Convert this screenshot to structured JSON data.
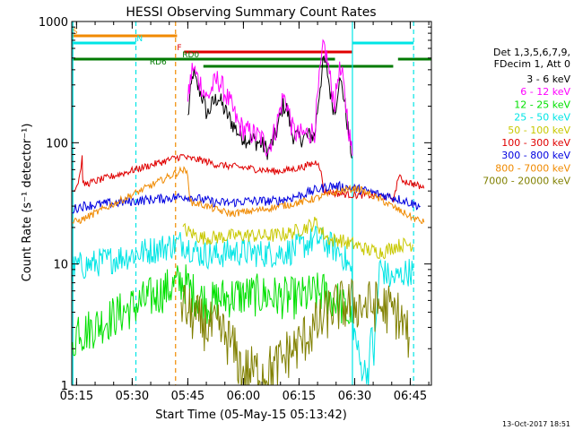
{
  "chart_data": {
    "type": "line",
    "title": "HESSI Observing Summary Count Rates",
    "xlabel": "Start Time (05-May-15 05:13:42)",
    "ylabel": "Count Rate (s⁻¹ detector⁻¹)",
    "x_unit": "minutes after 05:13:42 UT",
    "xlim": [
      0,
      97
    ],
    "ylim": [
      1,
      1000
    ],
    "y_scale": "log",
    "x_ticks": [
      {
        "label": "05:15",
        "t": 1.3
      },
      {
        "label": "05:30",
        "t": 16.3
      },
      {
        "label": "05:45",
        "t": 31.3
      },
      {
        "label": "06:00",
        "t": 46.3
      },
      {
        "label": "06:15",
        "t": 61.3
      },
      {
        "label": "06:30",
        "t": 76.3
      },
      {
        "label": "06:45",
        "t": 91.3
      }
    ],
    "y_ticks": [
      {
        "label": "1",
        "v": 1
      },
      {
        "label": "10",
        "v": 10
      },
      {
        "label": "100",
        "v": 100
      },
      {
        "label": "1000",
        "v": 1000
      }
    ],
    "legend_header": [
      "Det 1,3,5,6,7,9,",
      "FDecim 1, Att 0"
    ],
    "legend_position": "right",
    "timestamp": "13-Oct-2017 18:51",
    "grid": false,
    "vlines": [
      {
        "t": 0.3,
        "color": "#00e5e5",
        "style": "solid"
      },
      {
        "t": 17.3,
        "color": "#00e5e5",
        "style": "dashed"
      },
      {
        "t": 28.0,
        "color": "#f08a00",
        "style": "dashed"
      },
      {
        "t": 75.7,
        "color": "#00e5e5",
        "style": "solid"
      },
      {
        "t": 92.2,
        "color": "#00e5e5",
        "style": "dashed"
      }
    ],
    "flag_bars": [
      {
        "row": 1,
        "t0": 0,
        "t1": 28.4,
        "color": "#f08a00",
        "label": "S",
        "label_at": 0.2
      },
      {
        "row": 2,
        "t0": 0,
        "t1": 17.3,
        "color": "#00e5e5",
        "label": "N",
        "label_at": 17.5
      },
      {
        "row": 2,
        "t0": 75.8,
        "t1": 92.2,
        "color": "#00e5e5",
        "label": "",
        "label_at": 0
      },
      {
        "row": 3,
        "t0": 30.3,
        "t1": 75.8,
        "color": "#e00000",
        "label": "F",
        "label_at": 28.4
      },
      {
        "row": 4,
        "t0": 0,
        "t1": 71.0,
        "color": "#007a00",
        "label": "RD0",
        "label_at": 29.8
      },
      {
        "row": 4,
        "t0": 88.0,
        "t1": 97,
        "color": "#007a00",
        "label": "",
        "label_at": 0
      },
      {
        "row": 5,
        "t0": 35.5,
        "t1": 72.0,
        "color": "#007a00",
        "label": "RD6",
        "label_at": 21.0
      },
      {
        "row": 5,
        "t0": 72.3,
        "t1": 86.7,
        "color": "#007a00",
        "label": "",
        "label_at": 0
      }
    ],
    "series": [
      {
        "name": "3 - 6 keV",
        "color": "#000000",
        "noise": 0.08,
        "points": [
          [
            31.3,
            160
          ],
          [
            32,
            250
          ],
          [
            32.7,
            380
          ],
          [
            33.5,
            310
          ],
          [
            35,
            250
          ],
          [
            36.5,
            170
          ],
          [
            38,
            210
          ],
          [
            39.5,
            240
          ],
          [
            41,
            190
          ],
          [
            43,
            150
          ],
          [
            45,
            120
          ],
          [
            47,
            108
          ],
          [
            49,
            105
          ],
          [
            51,
            98
          ],
          [
            53,
            85
          ],
          [
            55,
            115
          ],
          [
            57,
            205
          ],
          [
            58,
            190
          ],
          [
            59.5,
            118
          ],
          [
            61,
            108
          ],
          [
            63,
            112
          ],
          [
            65.5,
            115
          ],
          [
            67,
            300
          ],
          [
            68,
            480
          ],
          [
            69,
            380
          ],
          [
            70,
            230
          ],
          [
            71,
            180
          ],
          [
            72,
            320
          ],
          [
            73,
            290
          ],
          [
            74,
            170
          ],
          [
            75,
            100
          ],
          [
            75.7,
            75
          ]
        ]
      },
      {
        "name": "6 - 12 keV",
        "color": "#ff00ff",
        "noise": 0.1,
        "points": [
          [
            31.3,
            210
          ],
          [
            32,
            330
          ],
          [
            32.7,
            430
          ],
          [
            33.5,
            360
          ],
          [
            35,
            300
          ],
          [
            36.5,
            230
          ],
          [
            38,
            290
          ],
          [
            39.5,
            335
          ],
          [
            41,
            270
          ],
          [
            43,
            200
          ],
          [
            45,
            140
          ],
          [
            47,
            125
          ],
          [
            49,
            118
          ],
          [
            51,
            110
          ],
          [
            53,
            90
          ],
          [
            55,
            130
          ],
          [
            57,
            240
          ],
          [
            58,
            215
          ],
          [
            59.5,
            130
          ],
          [
            61,
            115
          ],
          [
            63,
            118
          ],
          [
            65.5,
            125
          ],
          [
            67,
            380
          ],
          [
            68,
            640
          ],
          [
            69,
            470
          ],
          [
            70,
            290
          ],
          [
            71,
            210
          ],
          [
            72,
            400
          ],
          [
            73,
            340
          ],
          [
            74,
            200
          ],
          [
            75,
            110
          ],
          [
            75.7,
            78
          ]
        ]
      },
      {
        "name": "12 - 25 keV",
        "color": "#00e000",
        "noise": 0.18,
        "points": [
          [
            0.2,
            2.0
          ],
          [
            1.8,
            3.2
          ],
          [
            2.3,
            3.0
          ],
          [
            2.8,
            2.7
          ],
          [
            30,
            7.2
          ],
          [
            31.3,
            6.5
          ],
          [
            33,
            5.6
          ],
          [
            35,
            5.2
          ],
          [
            37,
            4.6
          ],
          [
            40,
            5.2
          ],
          [
            43,
            5.4
          ],
          [
            46,
            5.5
          ],
          [
            50,
            5.5
          ],
          [
            53,
            5.5
          ],
          [
            56,
            5.3
          ],
          [
            59,
            5.2
          ],
          [
            62,
            5.3
          ],
          [
            65,
            5.6
          ],
          [
            68,
            5.8
          ],
          [
            72,
            4.8
          ],
          [
            74,
            4.0
          ],
          [
            75.5,
            3.3
          ]
        ]
      },
      {
        "name": "25 - 50 keV",
        "color": "#00e5e5",
        "noise": 0.12,
        "points": [
          [
            0.2,
            9
          ],
          [
            2,
            9.8
          ],
          [
            2.5,
            9.5
          ],
          [
            30,
            15
          ],
          [
            31.3,
            14
          ],
          [
            35,
            12
          ],
          [
            39,
            11.8
          ],
          [
            43,
            12.5
          ],
          [
            47,
            12.5
          ],
          [
            51,
            12.2
          ],
          [
            55,
            12.2
          ],
          [
            59,
            12.8
          ],
          [
            63,
            14.5
          ],
          [
            66,
            16.2
          ],
          [
            70,
            14
          ],
          [
            73,
            12
          ],
          [
            75.5,
            8.5
          ],
          [
            76,
            3
          ],
          [
            78,
            1.4
          ],
          [
            80,
            1.3
          ],
          [
            81,
            3
          ],
          [
            81.5,
            1.6
          ],
          [
            83,
            9.5
          ],
          [
            86,
            7.5
          ],
          [
            88,
            7.8
          ],
          [
            90,
            8.5
          ],
          [
            92,
            8.8
          ]
        ]
      },
      {
        "name": "50 - 100 keV",
        "color": "#c8c800",
        "noise": 0.06,
        "points": [
          [
            30,
            19.5
          ],
          [
            31.3,
            18.5
          ],
          [
            33,
            17.5
          ],
          [
            35,
            16.5
          ],
          [
            38,
            16.5
          ],
          [
            43,
            17
          ],
          [
            47,
            17.3
          ],
          [
            51,
            17
          ],
          [
            55,
            17.2
          ],
          [
            59,
            18
          ],
          [
            63,
            20
          ],
          [
            66,
            22
          ],
          [
            68,
            17.5
          ],
          [
            70,
            15.5
          ],
          [
            72,
            16
          ],
          [
            74,
            15
          ],
          [
            76,
            14.5
          ],
          [
            80,
            13
          ],
          [
            84,
            12.5
          ],
          [
            87,
            14
          ],
          [
            90,
            14.5
          ],
          [
            92,
            14.5
          ]
        ]
      },
      {
        "name": "100 - 300 keV",
        "color": "#e00000",
        "noise": 0.03,
        "points": [
          [
            0.2,
            40
          ],
          [
            1.5,
            45
          ],
          [
            2.2,
            55
          ],
          [
            2.8,
            75
          ],
          [
            3.0,
            45
          ],
          [
            30,
            78
          ],
          [
            31.3,
            74
          ],
          [
            35,
            72
          ],
          [
            39,
            66
          ],
          [
            43,
            64
          ],
          [
            47,
            62
          ],
          [
            51,
            60
          ],
          [
            55,
            58
          ],
          [
            59,
            60
          ],
          [
            63,
            64
          ],
          [
            66.5,
            70
          ],
          [
            67,
            62
          ],
          [
            68,
            40
          ],
          [
            72,
            38
          ],
          [
            76,
            37
          ],
          [
            80,
            37
          ],
          [
            84,
            36
          ],
          [
            87,
            35
          ],
          [
            88,
            52
          ],
          [
            90,
            48
          ],
          [
            92,
            46
          ],
          [
            95,
            42
          ]
        ]
      },
      {
        "name": "300 - 800 keV",
        "color": "#0000e0",
        "noise": 0.04,
        "points": [
          [
            0.2,
            28
          ],
          [
            2.5,
            30
          ],
          [
            30,
            36
          ],
          [
            31.3,
            36
          ],
          [
            35,
            34
          ],
          [
            39,
            32
          ],
          [
            43,
            32
          ],
          [
            47,
            33
          ],
          [
            51,
            33
          ],
          [
            55,
            33
          ],
          [
            59,
            35
          ],
          [
            63,
            38
          ],
          [
            66,
            41
          ],
          [
            70,
            44
          ],
          [
            74,
            43
          ],
          [
            78,
            41
          ],
          [
            82,
            38
          ],
          [
            86,
            36
          ],
          [
            90,
            33
          ],
          [
            94,
            30
          ]
        ]
      },
      {
        "name": "800 - 7000 keV",
        "color": "#f08a00",
        "noise": 0.03,
        "points": [
          [
            0.2,
            22
          ],
          [
            2.5,
            23
          ],
          [
            30,
            60
          ],
          [
            31.3,
            55
          ],
          [
            32,
            32
          ],
          [
            35,
            31
          ],
          [
            39,
            28
          ],
          [
            43,
            26
          ],
          [
            47,
            27
          ],
          [
            51,
            28
          ],
          [
            55,
            29.5
          ],
          [
            59,
            31
          ],
          [
            63,
            33
          ],
          [
            66,
            35
          ],
          [
            70,
            38
          ],
          [
            74,
            41
          ],
          [
            77,
            42
          ],
          [
            80,
            38
          ],
          [
            84,
            33
          ],
          [
            88,
            28
          ],
          [
            92,
            24
          ],
          [
            95,
            22
          ]
        ]
      },
      {
        "name": "7000 - 20000 keV",
        "color": "#808000",
        "noise": 0.22,
        "points": [
          [
            29.5,
            5
          ],
          [
            31.3,
            4
          ],
          [
            34,
            3.4
          ],
          [
            37,
            3.0
          ],
          [
            40,
            2.8
          ],
          [
            43,
            2.2
          ],
          [
            46,
            1.3
          ],
          [
            49,
            1.3
          ],
          [
            52,
            1.3
          ],
          [
            55,
            1.4
          ],
          [
            58,
            1.8
          ],
          [
            61,
            2.1
          ],
          [
            64,
            2.7
          ],
          [
            67,
            3.2
          ],
          [
            70,
            4.3
          ],
          [
            73,
            4.5
          ],
          [
            76,
            4.7
          ],
          [
            79,
            4.5
          ],
          [
            82,
            4.5
          ],
          [
            85,
            4.3
          ],
          [
            88,
            3.8
          ],
          [
            91,
            2.5
          ]
        ]
      }
    ]
  }
}
